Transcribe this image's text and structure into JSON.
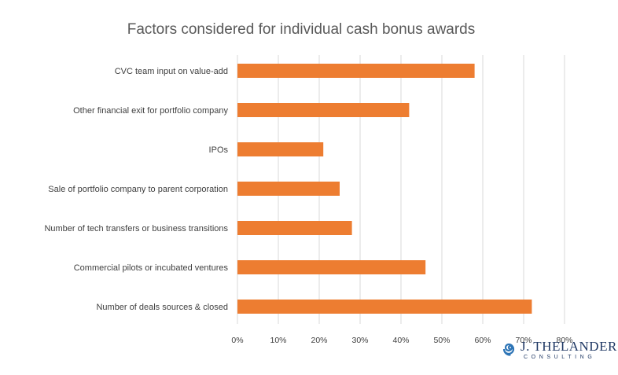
{
  "chart_data": {
    "type": "bar",
    "orientation": "horizontal",
    "title": "Factors considered for individual cash bonus awards",
    "categories": [
      "CVC team input on value-add",
      "Other financial exit for portfolio company",
      "IPOs",
      "Sale of portfolio company to parent corporation",
      "Number of tech transfers or business transitions",
      "Commercial pilots or incubated ventures",
      "Number of deals sources & closed"
    ],
    "values": [
      58,
      42,
      21,
      25,
      28,
      46,
      72
    ],
    "xlim": [
      0,
      80
    ],
    "tick_labels": [
      "0%",
      "10%",
      "20%",
      "30%",
      "40%",
      "50%",
      "60%",
      "70%",
      "80%"
    ],
    "grid": true,
    "bar_color": "#ed7d31"
  },
  "logo": {
    "name": "J. THELANDER",
    "sub": "CONSULTING",
    "color": "#1f3864",
    "icon": "spiral-logo-icon"
  }
}
